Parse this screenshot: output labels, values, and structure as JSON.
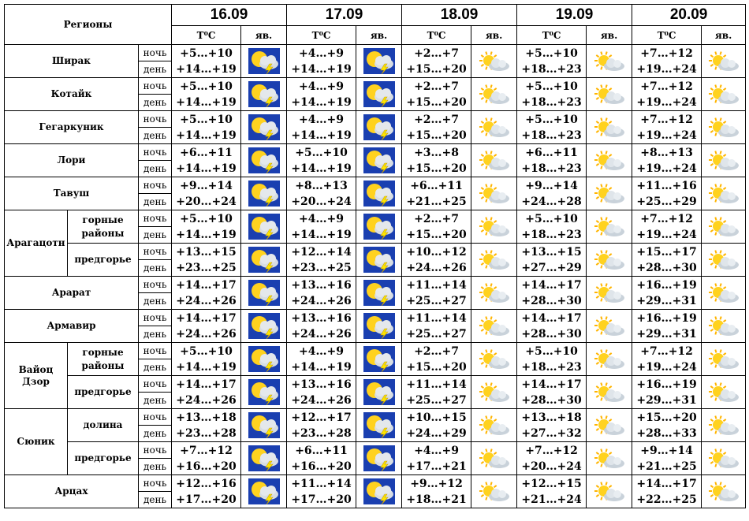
{
  "header": {
    "regions_label": "Регионы",
    "temp_label": "T⁰C",
    "phen_label": "яв.",
    "dates": [
      "16.09",
      "17.09",
      "18.09",
      "19.09",
      "20.09"
    ]
  },
  "time_labels": {
    "night": "ночь",
    "day": "день"
  },
  "icons": {
    "storm": "partly-cloudy-thunderstorm-icon",
    "sun": "partly-sunny-icon"
  },
  "colors": {
    "storm_bg": "#1a3fb0",
    "sun": "#ffd21f",
    "cloud": "#d7dde3",
    "bolt": "#ffe600"
  },
  "rows": [
    {
      "region": "Ширак",
      "sub": "",
      "cells": [
        {
          "night": "+5…+10",
          "day": "+14…+19",
          "icon": "storm"
        },
        {
          "night": "+4…+9",
          "day": "+14…+19",
          "icon": "storm"
        },
        {
          "night": "+2…+7",
          "day": "+15…+20",
          "icon": "sun"
        },
        {
          "night": "+5…+10",
          "day": "+18…+23",
          "icon": "sun"
        },
        {
          "night": "+7…+12",
          "day": "+19…+24",
          "icon": "sun"
        }
      ]
    },
    {
      "region": "Котайк",
      "sub": "",
      "cells": [
        {
          "night": "+5…+10",
          "day": "+14…+19",
          "icon": "storm"
        },
        {
          "night": "+4…+9",
          "day": "+14…+19",
          "icon": "storm"
        },
        {
          "night": "+2…+7",
          "day": "+15…+20",
          "icon": "sun"
        },
        {
          "night": "+5…+10",
          "day": "+18…+23",
          "icon": "sun"
        },
        {
          "night": "+7…+12",
          "day": "+19…+24",
          "icon": "sun"
        }
      ]
    },
    {
      "region": "Гегаркуник",
      "sub": "",
      "cells": [
        {
          "night": "+5…+10",
          "day": "+14…+19",
          "icon": "storm"
        },
        {
          "night": "+4…+9",
          "day": "+14…+19",
          "icon": "storm"
        },
        {
          "night": "+2…+7",
          "day": "+15…+20",
          "icon": "sun"
        },
        {
          "night": "+5…+10",
          "day": "+18…+23",
          "icon": "sun"
        },
        {
          "night": "+7…+12",
          "day": "+19…+24",
          "icon": "sun"
        }
      ]
    },
    {
      "region": "Лори",
      "sub": "",
      "cells": [
        {
          "night": "+6…+11",
          "day": "+14…+19",
          "icon": "storm"
        },
        {
          "night": "+5…+10",
          "day": "+14…+19",
          "icon": "storm"
        },
        {
          "night": "+3…+8",
          "day": "+15…+20",
          "icon": "sun"
        },
        {
          "night": "+6…+11",
          "day": "+18…+23",
          "icon": "sun"
        },
        {
          "night": "+8…+13",
          "day": "+19…+24",
          "icon": "sun"
        }
      ]
    },
    {
      "region": "Тавуш",
      "sub": "",
      "cells": [
        {
          "night": "+9…+14",
          "day": "+20…+24",
          "icon": "storm"
        },
        {
          "night": "+8…+13",
          "day": "+20…+24",
          "icon": "storm"
        },
        {
          "night": "+6…+11",
          "day": "+21…+25",
          "icon": "sun"
        },
        {
          "night": "+9…+14",
          "day": "+24…+28",
          "icon": "sun"
        },
        {
          "night": "+11…+16",
          "day": "+25…+29",
          "icon": "sun"
        }
      ]
    },
    {
      "region": "Арагацотн",
      "sub": "горные районы",
      "cells": [
        {
          "night": "+5…+10",
          "day": "+14…+19",
          "icon": "storm"
        },
        {
          "night": "+4…+9",
          "day": "+14…+19",
          "icon": "storm"
        },
        {
          "night": "+2…+7",
          "day": "+15…+20",
          "icon": "sun"
        },
        {
          "night": "+5…+10",
          "day": "+18…+23",
          "icon": "sun"
        },
        {
          "night": "+7…+12",
          "day": "+19…+24",
          "icon": "sun"
        }
      ]
    },
    {
      "region": "",
      "sub": "предгорье",
      "cells": [
        {
          "night": "+13…+15",
          "day": "+23…+25",
          "icon": "storm"
        },
        {
          "night": "+12…+14",
          "day": "+23…+25",
          "icon": "storm"
        },
        {
          "night": "+10…+12",
          "day": "+24…+26",
          "icon": "sun"
        },
        {
          "night": "+13…+15",
          "day": "+27…+29",
          "icon": "sun"
        },
        {
          "night": "+15…+17",
          "day": "+28…+30",
          "icon": "sun"
        }
      ]
    },
    {
      "region": "Арарат",
      "sub": "",
      "cells": [
        {
          "night": "+14…+17",
          "day": "+24…+26",
          "icon": "storm"
        },
        {
          "night": "+13…+16",
          "day": "+24…+26",
          "icon": "storm"
        },
        {
          "night": "+11…+14",
          "day": "+25…+27",
          "icon": "sun"
        },
        {
          "night": "+14…+17",
          "day": "+28…+30",
          "icon": "sun"
        },
        {
          "night": "+16…+19",
          "day": "+29…+31",
          "icon": "sun"
        }
      ]
    },
    {
      "region": "Армавир",
      "sub": "",
      "cells": [
        {
          "night": "+14…+17",
          "day": "+24…+26",
          "icon": "storm"
        },
        {
          "night": "+13…+16",
          "day": "+24…+26",
          "icon": "storm"
        },
        {
          "night": "+11…+14",
          "day": "+25…+27",
          "icon": "sun"
        },
        {
          "night": "+14…+17",
          "day": "+28…+30",
          "icon": "sun"
        },
        {
          "night": "+16…+19",
          "day": "+29…+31",
          "icon": "sun"
        }
      ]
    },
    {
      "region": "Вайоц Дзор",
      "sub": "горные районы",
      "cells": [
        {
          "night": "+5…+10",
          "day": "+14…+19",
          "icon": "storm"
        },
        {
          "night": "+4…+9",
          "day": "+14…+19",
          "icon": "storm"
        },
        {
          "night": "+2…+7",
          "day": "+15…+20",
          "icon": "sun"
        },
        {
          "night": "+5…+10",
          "day": "+18…+23",
          "icon": "sun"
        },
        {
          "night": "+7…+12",
          "day": "+19…+24",
          "icon": "sun"
        }
      ]
    },
    {
      "region": "",
      "sub": "предгорье",
      "cells": [
        {
          "night": "+14…+17",
          "day": "+24…+26",
          "icon": "storm"
        },
        {
          "night": "+13…+16",
          "day": "+24…+26",
          "icon": "storm"
        },
        {
          "night": "+11…+14",
          "day": "+25…+27",
          "icon": "sun"
        },
        {
          "night": "+14…+17",
          "day": "+28…+30",
          "icon": "sun"
        },
        {
          "night": "+16…+19",
          "day": "+29…+31",
          "icon": "sun"
        }
      ]
    },
    {
      "region": "Сюник",
      "sub": "долина",
      "cells": [
        {
          "night": "+13…+18",
          "day": "+23…+28",
          "icon": "storm"
        },
        {
          "night": "+12…+17",
          "day": "+23…+28",
          "icon": "storm"
        },
        {
          "night": "+10…+15",
          "day": "+24…+29",
          "icon": "sun"
        },
        {
          "night": "+13…+18",
          "day": "+27…+32",
          "icon": "sun"
        },
        {
          "night": "+15…+20",
          "day": "+28…+33",
          "icon": "sun"
        }
      ]
    },
    {
      "region": "",
      "sub": "предгорье",
      "cells": [
        {
          "night": "+7…+12",
          "day": "+16…+20",
          "icon": "storm"
        },
        {
          "night": "+6…+11",
          "day": "+16…+20",
          "icon": "storm"
        },
        {
          "night": "+4…+9",
          "day": "+17…+21",
          "icon": "sun"
        },
        {
          "night": "+7…+12",
          "day": "+20…+24",
          "icon": "sun"
        },
        {
          "night": "+9…+14",
          "day": "+21…+25",
          "icon": "sun"
        }
      ]
    },
    {
      "region": "Арцах",
      "sub": "",
      "cells": [
        {
          "night": "+12…+16",
          "day": "+17…+20",
          "icon": "storm"
        },
        {
          "night": "+11…+14",
          "day": "+17…+20",
          "icon": "storm"
        },
        {
          "night": "+9…+12",
          "day": "+18…+21",
          "icon": "sun"
        },
        {
          "night": "+12…+15",
          "day": "+21…+24",
          "icon": "sun"
        },
        {
          "night": "+14…+17",
          "day": "+22…+25",
          "icon": "sun"
        }
      ]
    }
  ]
}
